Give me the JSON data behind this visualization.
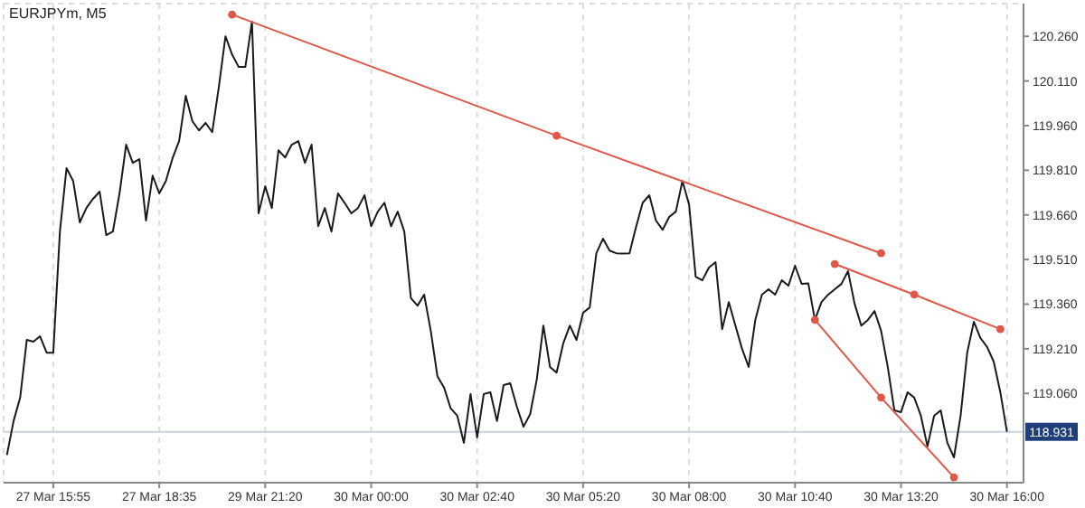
{
  "chart_data": {
    "type": "line",
    "title": "EURJPYm, M5",
    "categories": [
      null,
      null,
      null,
      null,
      null,
      null,
      null,
      "27 Mar 15:55",
      null,
      null,
      null,
      null,
      null,
      null,
      null,
      null,
      null,
      null,
      null,
      null,
      null,
      null,
      null,
      "27 Mar 18:35",
      null,
      null,
      null,
      null,
      null,
      null,
      null,
      null,
      null,
      null,
      null,
      null,
      null,
      null,
      null,
      "29 Mar 21:20",
      null,
      null,
      null,
      null,
      null,
      null,
      null,
      null,
      null,
      null,
      null,
      null,
      null,
      null,
      null,
      "30 Mar 00:00",
      null,
      null,
      null,
      null,
      null,
      null,
      null,
      null,
      null,
      null,
      null,
      null,
      null,
      null,
      null,
      "30 Mar 02:40",
      null,
      null,
      null,
      null,
      null,
      null,
      null,
      null,
      null,
      null,
      null,
      null,
      null,
      null,
      null,
      "30 Mar 05:20",
      null,
      null,
      null,
      null,
      null,
      null,
      null,
      null,
      null,
      null,
      null,
      null,
      null,
      null,
      null,
      "30 Mar 08:00",
      null,
      null,
      null,
      null,
      null,
      null,
      null,
      null,
      null,
      null,
      null,
      null,
      null,
      null,
      null,
      "30 Mar 10:40",
      null,
      null,
      null,
      null,
      null,
      null,
      null,
      null,
      null,
      null,
      null,
      null,
      null,
      null,
      null,
      "30 Mar 13:20",
      null,
      null,
      null,
      null,
      null,
      null,
      null,
      null,
      null,
      null,
      null,
      null,
      null,
      null,
      null,
      "30 Mar 16:00",
      null,
      null
    ],
    "ylim": [
      118.76,
      120.37
    ],
    "yticks": [
      {
        "value": 120.26,
        "label": "120.260"
      },
      {
        "value": 120.11,
        "label": "120.110"
      },
      {
        "value": 119.96,
        "label": "119.960"
      },
      {
        "value": 119.81,
        "label": "119.810"
      },
      {
        "value": 119.66,
        "label": "119.660"
      },
      {
        "value": 119.51,
        "label": "119.510"
      },
      {
        "value": 119.36,
        "label": "119.360"
      },
      {
        "value": 119.21,
        "label": "119.210"
      },
      {
        "value": 119.06,
        "label": "119.060"
      }
    ],
    "grid": true,
    "line_style": "solid",
    "ref_lines": [
      {
        "axis": "y",
        "value": 118.931,
        "label": "118.931",
        "color": "#c9d3dd"
      }
    ],
    "series": [
      {
        "color": "#1a1a1a",
        "marker": "none",
        "values": [
          118.853,
          118.967,
          119.046,
          119.24,
          119.234,
          119.252,
          119.197,
          119.197,
          119.604,
          119.817,
          119.774,
          119.635,
          119.683,
          119.714,
          119.738,
          119.592,
          119.604,
          119.732,
          119.896,
          119.835,
          119.847,
          119.641,
          119.792,
          119.732,
          119.774,
          119.85,
          119.908,
          120.06,
          119.975,
          119.944,
          119.969,
          119.938,
          120.09,
          120.26,
          120.199,
          120.157,
          120.157,
          120.309,
          119.665,
          119.756,
          119.683,
          119.877,
          119.853,
          119.896,
          119.908,
          119.835,
          119.896,
          119.622,
          119.683,
          119.604,
          119.732,
          119.7,
          119.665,
          119.683,
          119.726,
          119.622,
          119.671,
          119.701,
          119.622,
          119.671,
          119.604,
          119.38,
          119.355,
          119.392,
          119.27,
          119.118,
          119.08,
          119.01,
          118.985,
          118.894,
          119.058,
          118.912,
          119.058,
          119.064,
          118.967,
          119.088,
          119.094,
          119.015,
          118.948,
          118.99,
          119.106,
          119.288,
          119.149,
          119.13,
          119.228,
          119.288,
          119.24,
          119.331,
          119.349,
          119.531,
          119.58,
          119.54,
          119.531,
          119.53,
          119.531,
          119.62,
          119.701,
          119.726,
          119.641,
          119.61,
          119.653,
          119.671,
          119.774,
          119.695,
          119.452,
          119.44,
          119.483,
          119.501,
          119.276,
          119.367,
          119.288,
          119.21,
          119.149,
          119.307,
          119.392,
          119.41,
          119.392,
          119.44,
          119.422,
          119.489,
          119.428,
          119.43,
          119.307,
          119.367,
          119.392,
          119.41,
          119.428,
          119.471,
          119.361,
          119.288,
          119.307,
          119.337,
          119.27,
          119.149,
          119.003,
          118.997,
          119.064,
          119.046,
          118.985,
          118.882,
          118.985,
          119.003,
          118.894,
          118.845,
          118.985,
          119.197,
          119.301,
          119.246,
          119.216,
          119.167,
          119.064,
          118.931,
          null,
          null
        ]
      },
      {
        "color": "#e0574a",
        "marker": "circle",
        "values": [
          null,
          null,
          null,
          null,
          null,
          null,
          null,
          null,
          null,
          null,
          null,
          null,
          null,
          null,
          null,
          null,
          null,
          null,
          null,
          null,
          null,
          null,
          null,
          null,
          null,
          null,
          null,
          null,
          null,
          null,
          null,
          null,
          null,
          null,
          120.333,
          null,
          null,
          null,
          null,
          null,
          null,
          null,
          null,
          null,
          null,
          null,
          null,
          null,
          null,
          null,
          null,
          null,
          null,
          null,
          null,
          null,
          null,
          null,
          null,
          null,
          null,
          null,
          null,
          null,
          null,
          null,
          null,
          null,
          null,
          null,
          null,
          null,
          null,
          null,
          null,
          null,
          null,
          null,
          null,
          null,
          null,
          null,
          null,
          119.926,
          null,
          null,
          null,
          null,
          null,
          null,
          null,
          null,
          null,
          null,
          null,
          null,
          null,
          null,
          null,
          null,
          null,
          null,
          null,
          null,
          null,
          null,
          null,
          null,
          null,
          null,
          null,
          null,
          null,
          null,
          null,
          null,
          null,
          null,
          null,
          null,
          null,
          null,
          null,
          null,
          null,
          null,
          null,
          null,
          null,
          null,
          null,
          null,
          119.531,
          null,
          null,
          null,
          null,
          null,
          null,
          null,
          null,
          null,
          null,
          null,
          null,
          null,
          null,
          null,
          null,
          null,
          null,
          null,
          null,
          null
        ]
      },
      {
        "color": "#e0574a",
        "marker": "circle",
        "values": [
          null,
          null,
          null,
          null,
          null,
          null,
          null,
          null,
          null,
          null,
          null,
          null,
          null,
          null,
          null,
          null,
          null,
          null,
          null,
          null,
          null,
          null,
          null,
          null,
          null,
          null,
          null,
          null,
          null,
          null,
          null,
          null,
          null,
          null,
          null,
          null,
          null,
          null,
          null,
          null,
          null,
          null,
          null,
          null,
          null,
          null,
          null,
          null,
          null,
          null,
          null,
          null,
          null,
          null,
          null,
          null,
          null,
          null,
          null,
          null,
          null,
          null,
          null,
          null,
          null,
          null,
          null,
          null,
          null,
          null,
          null,
          null,
          null,
          null,
          null,
          null,
          null,
          null,
          null,
          null,
          null,
          null,
          null,
          null,
          null,
          null,
          null,
          null,
          null,
          null,
          null,
          null,
          null,
          null,
          null,
          null,
          null,
          null,
          null,
          null,
          null,
          null,
          null,
          null,
          null,
          null,
          null,
          null,
          null,
          null,
          null,
          null,
          null,
          null,
          null,
          null,
          null,
          null,
          null,
          null,
          null,
          null,
          null,
          null,
          null,
          119.495,
          null,
          null,
          null,
          null,
          null,
          null,
          null,
          null,
          null,
          null,
          null,
          119.392,
          null,
          null,
          null,
          null,
          null,
          null,
          null,
          null,
          null,
          null,
          null,
          null,
          119.276,
          null,
          null,
          null
        ]
      },
      {
        "color": "#e0574a",
        "marker": "circle",
        "values": [
          null,
          null,
          null,
          null,
          null,
          null,
          null,
          null,
          null,
          null,
          null,
          null,
          null,
          null,
          null,
          null,
          null,
          null,
          null,
          null,
          null,
          null,
          null,
          null,
          null,
          null,
          null,
          null,
          null,
          null,
          null,
          null,
          null,
          null,
          null,
          null,
          null,
          null,
          null,
          null,
          null,
          null,
          null,
          null,
          null,
          null,
          null,
          null,
          null,
          null,
          null,
          null,
          null,
          null,
          null,
          null,
          null,
          null,
          null,
          null,
          null,
          null,
          null,
          null,
          null,
          null,
          null,
          null,
          null,
          null,
          null,
          null,
          null,
          null,
          null,
          null,
          null,
          null,
          null,
          null,
          null,
          null,
          null,
          null,
          null,
          null,
          null,
          null,
          null,
          null,
          null,
          null,
          null,
          null,
          null,
          null,
          null,
          null,
          null,
          null,
          null,
          null,
          null,
          null,
          null,
          null,
          null,
          null,
          null,
          null,
          null,
          null,
          null,
          null,
          null,
          null,
          null,
          null,
          null,
          null,
          null,
          null,
          119.307,
          null,
          null,
          null,
          null,
          null,
          null,
          null,
          null,
          null,
          119.046,
          null,
          null,
          null,
          null,
          null,
          null,
          null,
          null,
          null,
          null,
          118.778,
          null,
          null,
          null,
          null,
          null,
          null,
          null,
          null,
          null,
          null
        ]
      }
    ]
  }
}
